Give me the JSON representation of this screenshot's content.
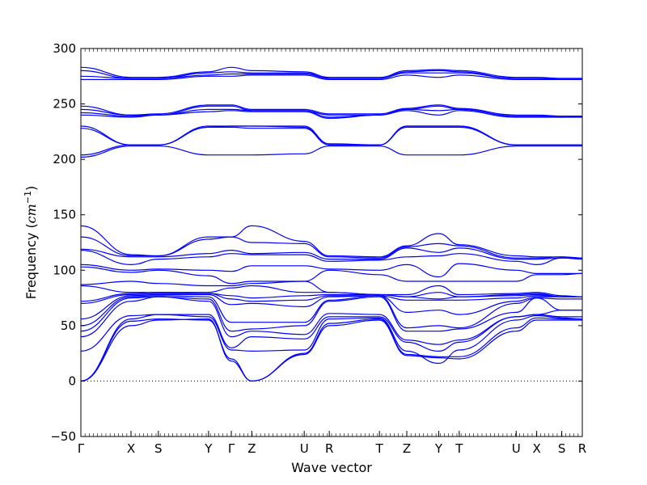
{
  "chart_data": {
    "type": "line",
    "title": "",
    "xlabel": "Wave vector",
    "ylabel_prefix": "Frequency (",
    "ylabel_unit_math": "cm",
    "ylabel_unit_exp": "−1",
    "ylabel_suffix": ")",
    "ylim": [
      -50,
      300
    ],
    "yticks": [
      -50,
      0,
      50,
      100,
      150,
      200,
      250,
      300
    ],
    "xlim": [
      0,
      22
    ],
    "high_symmetry_points": [
      {
        "label": "Γ",
        "x": 0
      },
      {
        "label": "X",
        "x": 2.2
      },
      {
        "label": "S",
        "x": 3.4
      },
      {
        "label": "Y",
        "x": 5.6
      },
      {
        "label": "Γ",
        "x": 6.6
      },
      {
        "label": "Z",
        "x": 7.5
      },
      {
        "label": "U",
        "x": 9.8
      },
      {
        "label": "R",
        "x": 10.9
      },
      {
        "label": "T",
        "x": 13.1
      },
      {
        "label": "Z",
        "x": 14.3
      },
      {
        "label": "Y",
        "x": 15.7
      },
      {
        "label": "T",
        "x": 16.6
      },
      {
        "label": "U",
        "x": 19.1
      },
      {
        "label": "X",
        "x": 20.0
      },
      {
        "label": "S",
        "x": 21.1
      },
      {
        "label": "R",
        "x": 22.0
      }
    ],
    "zero_line": {
      "y": 0,
      "style": "dotted"
    },
    "line_color": "#0000ff",
    "series": [
      {
        "values": [
          0,
          50,
          55,
          56,
          18,
          0,
          24,
          50,
          55,
          23,
          21,
          20,
          45,
          55,
          55,
          55
        ]
      },
      {
        "values": [
          0,
          54,
          56,
          55,
          20,
          0,
          25,
          52,
          56,
          24,
          22,
          22,
          48,
          57,
          56,
          56
        ]
      },
      {
        "values": [
          0,
          56,
          60,
          58,
          28,
          27,
          28,
          56,
          57,
          27,
          16,
          28,
          55,
          59,
          57,
          56
        ]
      },
      {
        "values": [
          27,
          59,
          60,
          60,
          30,
          40,
          38,
          58,
          58,
          35,
          27,
          35,
          58,
          60,
          58,
          58
        ]
      },
      {
        "values": [
          40,
          72,
          76,
          72,
          40,
          45,
          42,
          61,
          60,
          37,
          33,
          37,
          58,
          60,
          64,
          64
        ]
      },
      {
        "values": [
          45,
          75,
          76,
          74,
          45,
          47,
          50,
          72,
          76,
          45,
          45,
          47,
          62,
          75,
          64,
          64
        ]
      },
      {
        "values": [
          50,
          76,
          77,
          76,
          53,
          53,
          53,
          73,
          77,
          48,
          50,
          48,
          70,
          75,
          74,
          74
        ]
      },
      {
        "values": [
          56,
          77,
          78,
          78,
          69,
          70,
          67,
          76,
          77,
          62,
          64,
          60,
          72,
          76,
          76,
          76
        ]
      },
      {
        "values": [
          70,
          78,
          79,
          79,
          74,
          72,
          73,
          77,
          77,
          73,
          73,
          73,
          75,
          77,
          76,
          76
        ]
      },
      {
        "values": [
          72,
          79,
          80,
          79,
          77,
          75,
          77,
          78,
          78,
          76,
          74,
          76,
          77,
          78,
          76,
          76
        ]
      },
      {
        "values": [
          86,
          80,
          80,
          80,
          84,
          86,
          80,
          80,
          78,
          76,
          80,
          76,
          78,
          79,
          76,
          76
        ]
      },
      {
        "values": [
          87,
          90,
          88,
          86,
          86,
          88,
          90,
          80,
          78,
          78,
          86,
          78,
          79,
          80,
          77,
          76
        ]
      },
      {
        "values": [
          103,
          98,
          100,
          95,
          88,
          90,
          90,
          100,
          96,
          90,
          90,
          90,
          90,
          96,
          96,
          97
        ]
      },
      {
        "values": [
          105,
          100,
          101,
          100,
          99,
          104,
          104,
          101,
          100,
          105,
          94,
          106,
          100,
          97,
          97,
          97
        ]
      },
      {
        "values": [
          118,
          105,
          110,
          112,
          115,
          114,
          114,
          108,
          109,
          112,
          113,
          115,
          108,
          105,
          111,
          110
        ]
      },
      {
        "values": [
          119,
          112,
          112,
          115,
          118,
          115,
          116,
          110,
          110,
          120,
          116,
          120,
          110,
          110,
          111,
          111
        ]
      },
      {
        "values": [
          130,
          113,
          113,
          128,
          130,
          125,
          124,
          112,
          111,
          121,
          124,
          122,
          111,
          111,
          112,
          111
        ]
      },
      {
        "values": [
          140,
          114,
          113,
          130,
          130,
          140,
          126,
          113,
          112,
          122,
          133,
          123,
          113,
          112,
          112,
          111
        ]
      },
      {
        "values": [
          202,
          212,
          212,
          204,
          204,
          204,
          205,
          212,
          212,
          204,
          204,
          204,
          212,
          212,
          212,
          212
        ]
      },
      {
        "values": [
          204,
          213,
          213,
          229,
          229,
          228,
          228,
          213,
          213,
          229,
          229,
          229,
          213,
          213,
          213,
          213
        ]
      },
      {
        "values": [
          228,
          213,
          213,
          229,
          230,
          230,
          229,
          213,
          213,
          230,
          230,
          230,
          213,
          213,
          213,
          213
        ]
      },
      {
        "values": [
          230,
          213,
          213,
          230,
          230,
          230,
          230,
          214,
          213,
          230,
          230,
          230,
          213,
          213,
          213,
          213
        ]
      },
      {
        "values": [
          240,
          238,
          240,
          243,
          244,
          243,
          243,
          237,
          240,
          244,
          240,
          244,
          238,
          238,
          238,
          238
        ]
      },
      {
        "values": [
          242,
          239,
          240,
          245,
          245,
          244,
          244,
          238,
          240,
          245,
          244,
          245,
          239,
          239,
          238,
          239
        ]
      },
      {
        "values": [
          245,
          240,
          240,
          248,
          248,
          244,
          244,
          240,
          240,
          245,
          248,
          245,
          239,
          239,
          239,
          239
        ]
      },
      {
        "values": [
          248,
          240,
          241,
          249,
          249,
          245,
          245,
          241,
          241,
          246,
          249,
          246,
          240,
          240,
          239,
          239
        ]
      },
      {
        "values": [
          272,
          272,
          272,
          275,
          275,
          276,
          276,
          272,
          272,
          276,
          274,
          276,
          272,
          272,
          272,
          272
        ]
      },
      {
        "values": [
          275,
          273,
          273,
          276,
          277,
          277,
          277,
          273,
          273,
          278,
          278,
          278,
          273,
          273,
          272,
          272
        ]
      },
      {
        "values": [
          280,
          273,
          273,
          278,
          279,
          278,
          278,
          273,
          273,
          279,
          280,
          279,
          273,
          273,
          273,
          273
        ]
      },
      {
        "values": [
          283,
          274,
          274,
          279,
          283,
          280,
          279,
          274,
          274,
          280,
          281,
          280,
          274,
          274,
          273,
          273
        ]
      }
    ]
  }
}
